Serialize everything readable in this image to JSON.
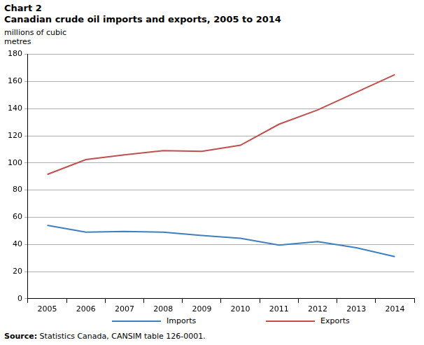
{
  "chart_data": {
    "type": "line",
    "title": "Chart 2",
    "subtitle": "Canadian crude oil imports and exports, 2005 to 2014",
    "y_label": [
      "millions of cubic",
      "metres"
    ],
    "source": "Source: Statistics Canada, CANSIM table 126-0001.",
    "categories": [
      "2005",
      "2006",
      "2007",
      "2008",
      "2009",
      "2010",
      "2011",
      "2012",
      "2013",
      "2014"
    ],
    "series": [
      {
        "name": "Imports",
        "color": "#3f7fbf",
        "values": [
          54,
          49,
          49.5,
          49,
          46.5,
          44.5,
          39.5,
          42,
          37.5,
          31
        ]
      },
      {
        "name": "Exports",
        "color": "#c0504d",
        "values": [
          91.5,
          102.5,
          106,
          109,
          108.5,
          113,
          128.5,
          139,
          152,
          165
        ]
      }
    ],
    "ylim": [
      0,
      180
    ],
    "yticks": [
      0,
      20,
      40,
      60,
      80,
      100,
      120,
      140,
      160,
      180
    ],
    "grid": true,
    "legend": "bottom"
  }
}
